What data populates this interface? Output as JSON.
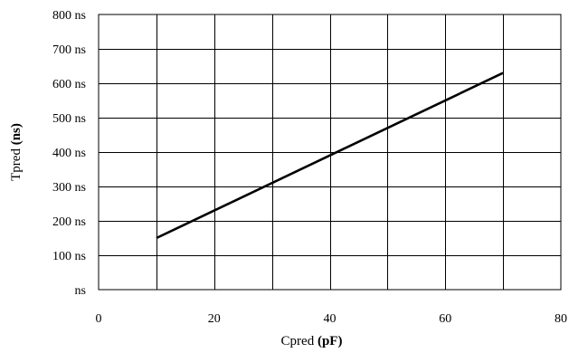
{
  "chart_data": {
    "type": "line",
    "title": "",
    "xlabel": "Cpred (pF)",
    "xlabel_parts": [
      "Cpred ",
      "(pF)"
    ],
    "ylabel": "Tpred (ns)",
    "ylabel_parts": [
      "Tpred ",
      "(ns)"
    ],
    "xlim": [
      0,
      80
    ],
    "ylim": [
      0,
      800
    ],
    "xticks": [
      0,
      20,
      40,
      60,
      80
    ],
    "xtick_labels": [
      "0",
      "20",
      "40",
      "60",
      "80"
    ],
    "yticks": [
      0,
      100,
      200,
      300,
      400,
      500,
      600,
      700,
      800
    ],
    "ytick_labels": [
      "ns",
      "100  ns",
      "200  ns",
      "300  ns",
      "400  ns",
      "500  ns",
      "600  ns",
      "700  ns",
      "800  ns"
    ],
    "grid": true,
    "x_grid_step": 10,
    "series": [
      {
        "x": [
          10,
          70
        ],
        "y": [
          150,
          630
        ]
      }
    ]
  }
}
